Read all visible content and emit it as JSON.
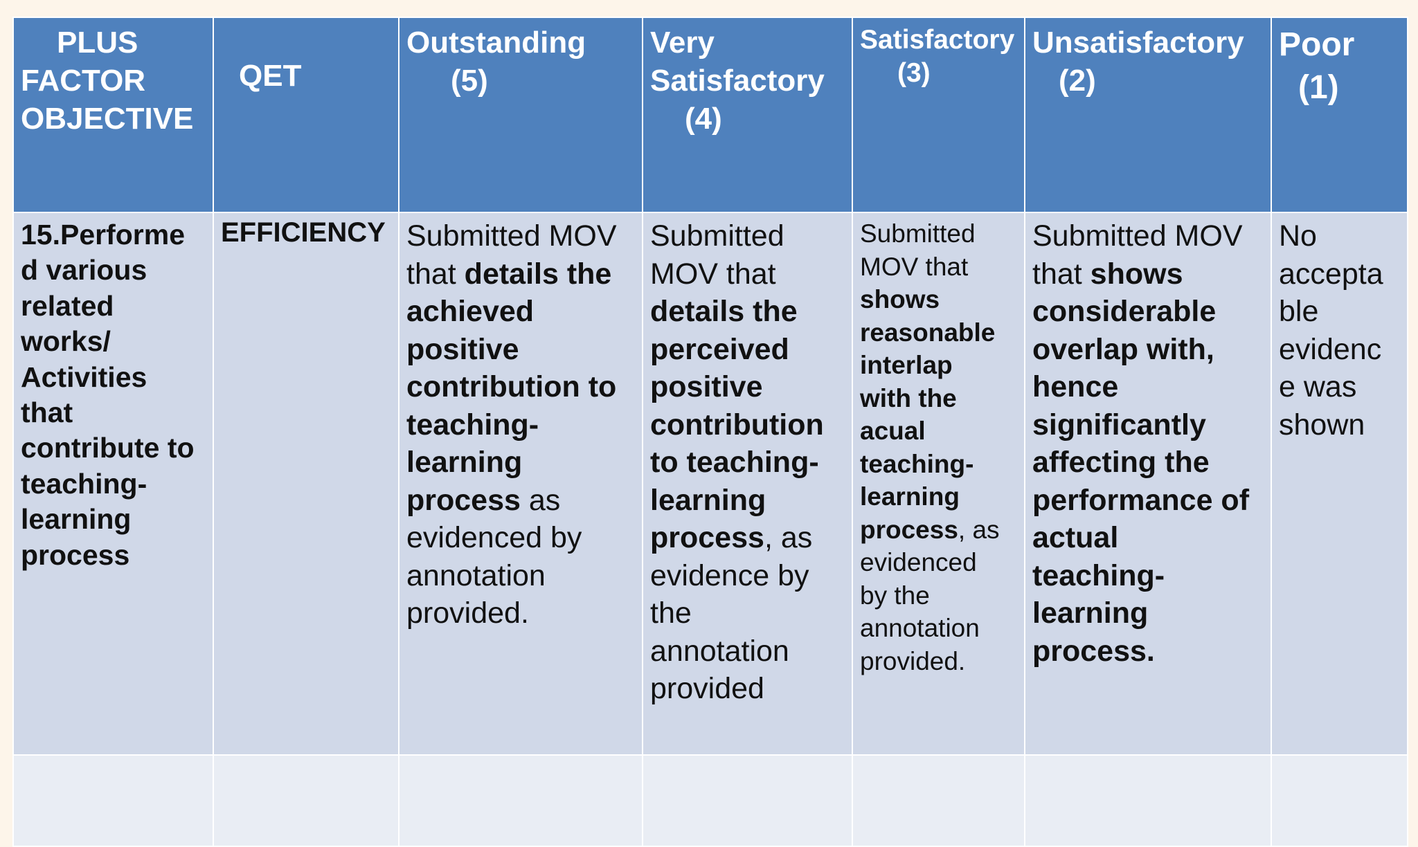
{
  "header": {
    "col1_lines": [
      "PLUS",
      "FACTOR",
      "OBJECTIVE"
    ],
    "col2": "QET",
    "col3_lines": [
      "Outstanding",
      "(5)"
    ],
    "col4_lines": [
      "Very",
      "Satisfactory",
      "(4)"
    ],
    "col5_lines": [
      "Satisfactory",
      "(3)"
    ],
    "col6_lines": [
      "Unsatisfactory",
      "(2)"
    ],
    "col7_lines": [
      "Poor",
      "(1)"
    ]
  },
  "row": {
    "objective_lines": [
      "15.Performe",
      "d various",
      "related",
      "works/",
      "Activities",
      "that",
      "contribute to",
      "teaching-",
      "learning",
      "process"
    ],
    "qet": "EFFICIENCY",
    "outstanding": {
      "l1": "Submitted MOV",
      "l2a": "that ",
      "l2b": "details the",
      "l3": "achieved",
      "l4": "positive",
      "l5": "contribution to",
      "l6": "teaching-",
      "l7": "learning",
      "l8a": "process",
      "l8b": " as",
      "l9": "evidenced by",
      "l10": "annotation",
      "l11": "provided."
    },
    "very_satisfactory": {
      "l1": "Submitted",
      "l2": "MOV that",
      "l3": "details the",
      "l4": "perceived",
      "l5": "positive",
      "l6": "contribution",
      "l7": "to teaching-",
      "l8": "learning",
      "l9a": "process",
      "l9b": ", as",
      "l10": "evidence by",
      "l11": "the",
      "l12": "annotation",
      "l13": "provided"
    },
    "satisfactory": {
      "l1": "Submitted",
      "l2": "MOV that",
      "l3": "shows",
      "l4": "reasonable",
      "l5": "interlap",
      "l6": "with the",
      "l7": "acual",
      "l8": "teaching-",
      "l9": "learning",
      "l10a": "process",
      "l10b": ", as",
      "l11": "evidenced",
      "l12": "by the",
      "l13": "annotation",
      "l14": "provided."
    },
    "unsatisfactory": {
      "l1": "Submitted MOV",
      "l2a": "that ",
      "l2b": "shows",
      "l3": "considerable",
      "l4": "overlap with,",
      "l5": "hence",
      "l6": "significantly",
      "l7": "affecting the",
      "l8": "performance of",
      "l9": "actual",
      "l10": "teaching-",
      "l11": "learning",
      "l12": "process."
    },
    "poor_lines": [
      "No",
      "accepta",
      "ble",
      "evidenc",
      "e was",
      "shown"
    ]
  }
}
